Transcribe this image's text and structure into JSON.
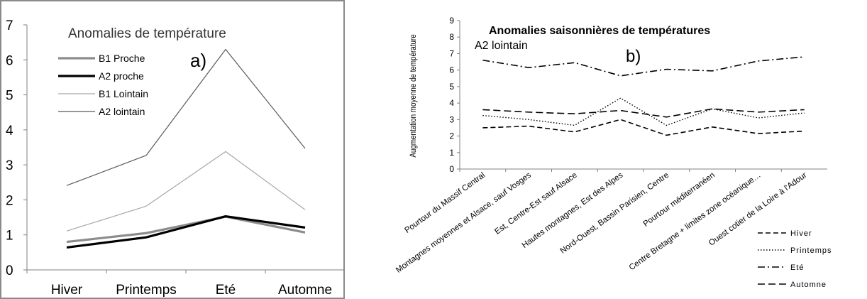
{
  "chart_data": [
    {
      "id": "a",
      "type": "line",
      "title": "Anomalies de température",
      "panel_label": "a)",
      "categories": [
        "Hiver",
        "Printemps",
        "Eté",
        "Automne"
      ],
      "yticks": [
        "0",
        "1",
        "2",
        "3",
        "4",
        "5",
        "6",
        "7"
      ],
      "ylim": [
        0,
        7
      ],
      "grid": false,
      "legend_position": "top-left",
      "series": [
        {
          "name": "B1 Proche",
          "values": [
            0.8,
            1.05,
            1.52,
            1.07
          ],
          "color": "#8c8c8c",
          "style": "solid-thick"
        },
        {
          "name": "A2 proche",
          "values": [
            0.64,
            0.93,
            1.53,
            1.21
          ],
          "color": "#000000",
          "style": "solid-thick"
        },
        {
          "name": "B1 Lointain",
          "values": [
            1.11,
            1.82,
            3.38,
            1.72
          ],
          "color": "#a6a6a6",
          "style": "solid-thin"
        },
        {
          "name": "A2 lointain",
          "values": [
            2.41,
            3.27,
            6.3,
            3.47
          ],
          "color": "#595959",
          "style": "solid-thin"
        }
      ]
    },
    {
      "id": "b",
      "type": "line",
      "title": "Anomalies saisonnières de températures",
      "subtitle": "A2 lointain",
      "panel_label": "b)",
      "ylabel": "Augmentation moyenne de température",
      "categories": [
        "Pourtour du Massif Central",
        "Montagnes moyennes et Alsace, sauf Vosges",
        "Est, Centre-Est sauf Alsace",
        "Hautes montagnes, Est des Alpes",
        "Nord-Ouest, Bassin Parisien, Centre",
        "Pourtour méditerranéen",
        "Centre Bretagne + limites zone océanique…",
        "Ouest cotier de la Loire à l'Adour"
      ],
      "yticks": [
        "0",
        "1",
        "2",
        "3",
        "4",
        "5",
        "6",
        "7",
        "8",
        "9"
      ],
      "ylim": [
        0,
        9
      ],
      "grid": false,
      "legend_position": "bottom-right",
      "series": [
        {
          "name": "Hiver",
          "values": [
            2.5,
            2.6,
            2.25,
            3.0,
            2.05,
            2.55,
            2.15,
            2.3
          ],
          "color": "#000000",
          "style": "dash"
        },
        {
          "name": "Printemps",
          "values": [
            3.25,
            3.0,
            2.65,
            4.3,
            2.65,
            3.65,
            3.1,
            3.4
          ],
          "color": "#000000",
          "style": "dot"
        },
        {
          "name": "Eté",
          "values": [
            6.6,
            6.15,
            6.45,
            5.65,
            6.05,
            5.95,
            6.55,
            6.8
          ],
          "color": "#000000",
          "style": "dashdot"
        },
        {
          "name": "Automne",
          "values": [
            3.6,
            3.45,
            3.35,
            3.55,
            3.15,
            3.65,
            3.45,
            3.6
          ],
          "color": "#000000",
          "style": "longdash"
        }
      ]
    }
  ]
}
